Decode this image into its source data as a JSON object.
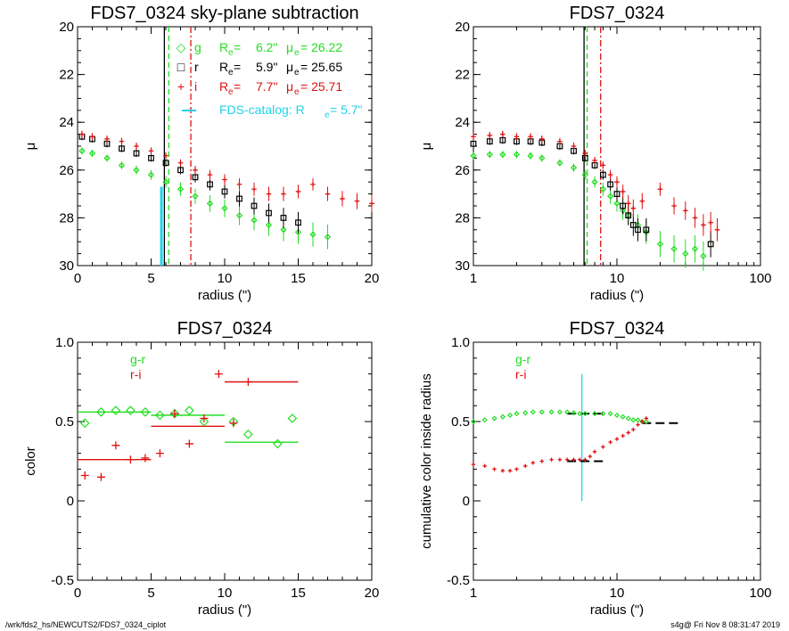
{
  "footer": {
    "left": "/wrk/fds2_hs/NEWCUTS2/FDS7_0324_ciplot",
    "right": "s4g@  Fri Nov  8 08:31:47 2019"
  },
  "colors": {
    "g": "#22dd22",
    "r": "#000000",
    "i": "#e01010",
    "catalog": "#22d3e8"
  },
  "chart_data": [
    {
      "type": "scatter",
      "title": "FDS7_0324 sky-plane subtraction",
      "xlabel": "radius (\")",
      "ylabel": "μ",
      "xlim": [
        0,
        20
      ],
      "ylim": [
        30,
        20
      ],
      "xscale": "linear",
      "xticks": [
        0,
        5,
        10,
        15,
        20
      ],
      "yticks": [
        20,
        22,
        24,
        26,
        28,
        30
      ],
      "legend": [
        {
          "symbol": "◇",
          "band": "g",
          "Re": "6.2\"",
          "mue": "26.22",
          "color": "#22dd22"
        },
        {
          "symbol": "□",
          "band": "r",
          "Re": "5.9\"",
          "mue": "25.65",
          "color": "#000000"
        },
        {
          "symbol": "+",
          "band": "i",
          "Re": "7.7\"",
          "mue": "25.71",
          "color": "#e01010"
        }
      ],
      "catalog": {
        "label": "FDS-catalog: R",
        "sub": "e",
        "value": "=   5.7\"",
        "x": 5.7,
        "color": "#22d3e8"
      },
      "vlines": [
        {
          "x": 5.9,
          "band": "r",
          "style": "solid"
        },
        {
          "x": 6.2,
          "band": "g",
          "style": "dashed"
        },
        {
          "x": 7.7,
          "band": "i",
          "style": "dashdot"
        }
      ],
      "series": [
        {
          "band": "g",
          "marker": "diamond",
          "x": [
            0.3,
            1,
            2,
            3,
            4,
            5,
            6,
            7,
            8,
            9,
            10,
            11,
            12,
            13,
            14,
            15,
            16,
            17
          ],
          "y": [
            25.2,
            25.3,
            25.5,
            25.8,
            26.0,
            26.2,
            26.5,
            26.8,
            27.1,
            27.4,
            27.6,
            27.9,
            28.1,
            28.3,
            28.5,
            28.6,
            28.7,
            28.8
          ]
        },
        {
          "band": "r",
          "marker": "square",
          "x": [
            0.3,
            1,
            2,
            3,
            4,
            5,
            6,
            7,
            8,
            9,
            10,
            11,
            12,
            13,
            14,
            15
          ],
          "y": [
            24.6,
            24.7,
            24.9,
            25.1,
            25.3,
            25.5,
            25.7,
            26.0,
            26.3,
            26.6,
            26.9,
            27.2,
            27.5,
            27.8,
            28.0,
            28.2
          ]
        },
        {
          "band": "i",
          "marker": "plus",
          "x": [
            0.3,
            1,
            2,
            3,
            4,
            5,
            6,
            7,
            8,
            9,
            10,
            11,
            12,
            13,
            14,
            15,
            16,
            17,
            18,
            19,
            20
          ],
          "y": [
            24.5,
            24.6,
            24.7,
            24.8,
            25.0,
            25.2,
            25.4,
            25.7,
            26.0,
            26.2,
            26.4,
            26.6,
            26.8,
            27.0,
            27.0,
            26.9,
            26.6,
            27.0,
            27.2,
            27.3,
            27.4
          ]
        }
      ]
    },
    {
      "type": "scatter",
      "title": "FDS7_0324",
      "xlabel": "radius (\")",
      "ylabel": "μ",
      "xlim": [
        1,
        100
      ],
      "ylim": [
        30,
        20
      ],
      "xscale": "log",
      "xticks": [
        1,
        10,
        100
      ],
      "yticks": [
        20,
        22,
        24,
        26,
        28,
        30
      ],
      "catalog_x": 5.7,
      "vlines": [
        {
          "x": 5.9,
          "band": "r",
          "style": "solid"
        },
        {
          "x": 6.2,
          "band": "g",
          "style": "dashed"
        },
        {
          "x": 7.7,
          "band": "i",
          "style": "dashdot"
        }
      ],
      "series": [
        {
          "band": "g",
          "marker": "diamond",
          "x": [
            1,
            1.3,
            1.6,
            2,
            2.5,
            3,
            4,
            5,
            6,
            7,
            8,
            9,
            10,
            11,
            12,
            14,
            16,
            20,
            25,
            30,
            35,
            40
          ],
          "y": [
            25.4,
            25.35,
            25.35,
            25.35,
            25.4,
            25.5,
            25.7,
            25.9,
            26.2,
            26.5,
            26.8,
            27.1,
            27.4,
            27.7,
            27.9,
            28.3,
            28.6,
            29.1,
            29.3,
            29.5,
            29.3,
            29.6
          ]
        },
        {
          "band": "r",
          "marker": "square",
          "x": [
            1,
            1.3,
            1.6,
            2,
            2.5,
            3,
            4,
            5,
            6,
            7,
            8,
            9,
            10,
            11,
            12,
            13,
            14,
            16,
            45
          ],
          "y": [
            24.9,
            24.8,
            24.75,
            24.8,
            24.8,
            24.85,
            25.0,
            25.2,
            25.5,
            25.8,
            26.2,
            26.6,
            27.0,
            27.5,
            27.9,
            28.3,
            28.5,
            28.5,
            29.1
          ]
        },
        {
          "band": "i",
          "marker": "plus",
          "x": [
            1,
            1.3,
            1.6,
            2,
            2.5,
            3,
            4,
            5,
            6,
            7,
            8,
            9,
            10,
            11,
            12,
            13,
            15,
            20,
            25,
            30,
            35,
            40,
            45,
            50
          ],
          "y": [
            24.6,
            24.55,
            24.5,
            24.6,
            24.6,
            24.7,
            24.8,
            25.0,
            25.3,
            25.6,
            25.8,
            26.2,
            26.5,
            26.9,
            27.4,
            27.6,
            27.3,
            26.8,
            27.5,
            27.7,
            28.0,
            28.3,
            28.2,
            28.5
          ]
        }
      ]
    },
    {
      "type": "scatter",
      "title": "FDS7_0324",
      "xlabel": "radius (\")",
      "ylabel": "color",
      "xlim": [
        0,
        20
      ],
      "ylim": [
        -0.5,
        1.0
      ],
      "xscale": "linear",
      "xticks": [
        0,
        5,
        10,
        15,
        20
      ],
      "yticks": [
        -0.5,
        0.0,
        0.5,
        1.0
      ],
      "legend": [
        {
          "label": "g-r",
          "color": "#22dd22"
        },
        {
          "label": "r-i",
          "color": "#e01010"
        }
      ],
      "series": [
        {
          "band": "g-r",
          "marker": "diamond",
          "x": [
            0.5,
            1.6,
            2.6,
            3.6,
            4.6,
            5.6,
            6.6,
            7.6,
            8.6,
            10.6,
            11.6,
            13.6,
            14.6
          ],
          "y": [
            0.49,
            0.56,
            0.57,
            0.57,
            0.56,
            0.54,
            0.55,
            0.57,
            0.5,
            0.5,
            0.42,
            0.36,
            0.52
          ]
        },
        {
          "band": "r-i",
          "marker": "plus",
          "x": [
            0.5,
            1.6,
            2.6,
            3.6,
            4.6,
            5.6,
            6.6,
            7.6,
            8.6,
            9.6,
            10.6,
            11.6
          ],
          "y": [
            0.16,
            0.15,
            0.35,
            0.26,
            0.27,
            0.3,
            0.55,
            0.36,
            0.52,
            0.8,
            0.49,
            0.75
          ]
        }
      ],
      "segments": [
        {
          "band": "g-r",
          "x": [
            0,
            5
          ],
          "y": 0.56
        },
        {
          "band": "g-r",
          "x": [
            5,
            10
          ],
          "y": 0.54
        },
        {
          "band": "g-r",
          "x": [
            10,
            15
          ],
          "y": 0.37
        },
        {
          "band": "r-i",
          "x": [
            0,
            5
          ],
          "y": 0.26
        },
        {
          "band": "r-i",
          "x": [
            5,
            10
          ],
          "y": 0.47
        },
        {
          "band": "r-i",
          "x": [
            10,
            15
          ],
          "y": 0.75
        }
      ]
    },
    {
      "type": "scatter",
      "title": "FDS7_0324",
      "xlabel": "radius (\")",
      "ylabel": "cumulative color inside radius",
      "xlim": [
        1,
        100
      ],
      "ylim": [
        -0.5,
        1.0
      ],
      "xscale": "log",
      "xticks": [
        1,
        10,
        100
      ],
      "yticks": [
        -0.5,
        0.0,
        0.5,
        1.0
      ],
      "legend": [
        {
          "label": "g-r",
          "color": "#22dd22"
        },
        {
          "label": "r-i",
          "color": "#e01010"
        }
      ],
      "catalog_x": 5.7,
      "catalog_y": [
        0.0,
        0.8
      ],
      "series": [
        {
          "band": "g-r",
          "marker": "diamond",
          "x": [
            1,
            1.2,
            1.4,
            1.6,
            1.8,
            2,
            2.3,
            2.6,
            3,
            3.5,
            4,
            4.5,
            5,
            5.5,
            6,
            7,
            8,
            9,
            10,
            11,
            12,
            13,
            14,
            15,
            16
          ],
          "y": [
            0.5,
            0.51,
            0.52,
            0.53,
            0.54,
            0.55,
            0.555,
            0.56,
            0.56,
            0.56,
            0.56,
            0.56,
            0.555,
            0.55,
            0.55,
            0.55,
            0.55,
            0.55,
            0.54,
            0.53,
            0.52,
            0.51,
            0.51,
            0.5,
            0.5
          ]
        },
        {
          "band": "r-i",
          "marker": "plus",
          "x": [
            1,
            1.2,
            1.4,
            1.6,
            1.8,
            2,
            2.3,
            2.6,
            3,
            3.5,
            4,
            4.5,
            5,
            5.5,
            6,
            6.5,
            7,
            8,
            9,
            10,
            11,
            12,
            13,
            14,
            15,
            16
          ],
          "y": [
            0.23,
            0.22,
            0.2,
            0.19,
            0.19,
            0.2,
            0.22,
            0.24,
            0.25,
            0.26,
            0.26,
            0.26,
            0.26,
            0.26,
            0.26,
            0.28,
            0.31,
            0.34,
            0.37,
            0.39,
            0.41,
            0.43,
            0.45,
            0.48,
            0.5,
            0.52
          ]
        }
      ],
      "segments": [
        {
          "band": "g-r",
          "x": [
            4.5,
            8
          ],
          "y": 0.55
        },
        {
          "band": "g-r",
          "x": [
            15,
            27
          ],
          "y": 0.49
        },
        {
          "band": "r-i",
          "x": [
            4.5,
            8
          ],
          "y": 0.25
        }
      ]
    }
  ]
}
